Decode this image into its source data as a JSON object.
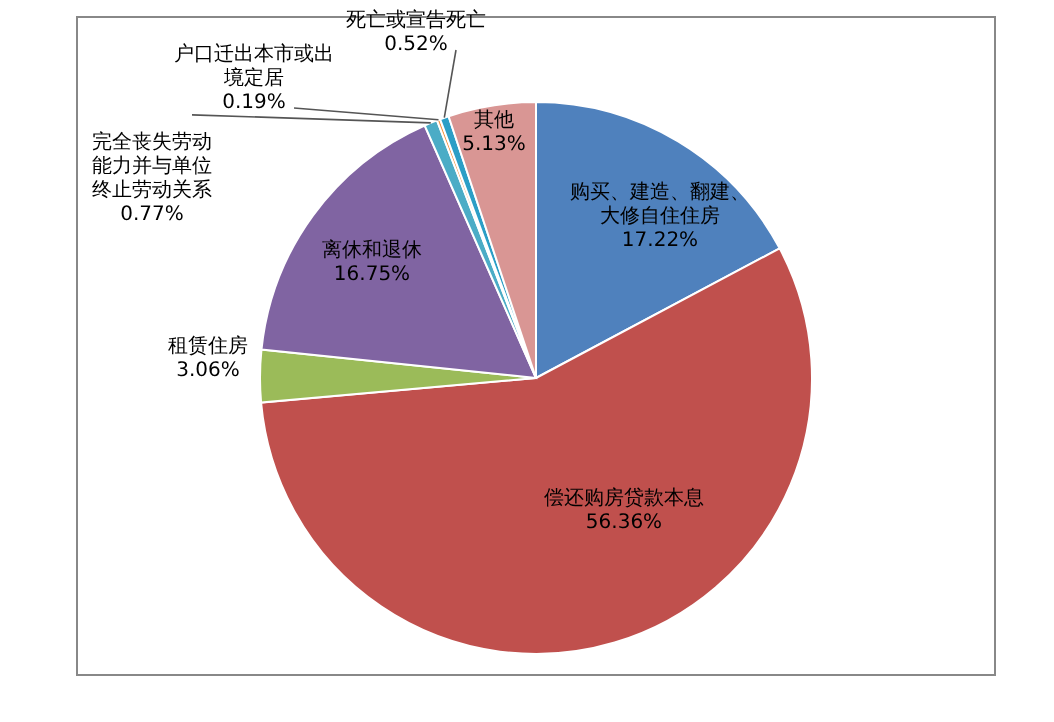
{
  "chart_data": {
    "type": "pie",
    "categories": [
      "购买、建造、翻建、大修自住住房",
      "偿还购房贷款本息",
      "租赁住房",
      "离休和退休",
      "完全丧失劳动能力并与单位终止劳动关系",
      "户口迁出本市或出境定居",
      "死亡或宣告死亡",
      "其他"
    ],
    "values": [
      17.22,
      56.36,
      3.06,
      16.75,
      0.77,
      0.19,
      0.52,
      5.13
    ],
    "value_labels": [
      "17.22%",
      "56.36%",
      "3.06%",
      "16.75%",
      "0.77%",
      "0.19%",
      "0.52%",
      "5.13%"
    ],
    "colors": [
      "#4f81bd",
      "#c0504d",
      "#9bbb59",
      "#8064a2",
      "#4bacc6",
      "#f79646",
      "#2c9ec6",
      "#d99694"
    ],
    "legend": false
  }
}
